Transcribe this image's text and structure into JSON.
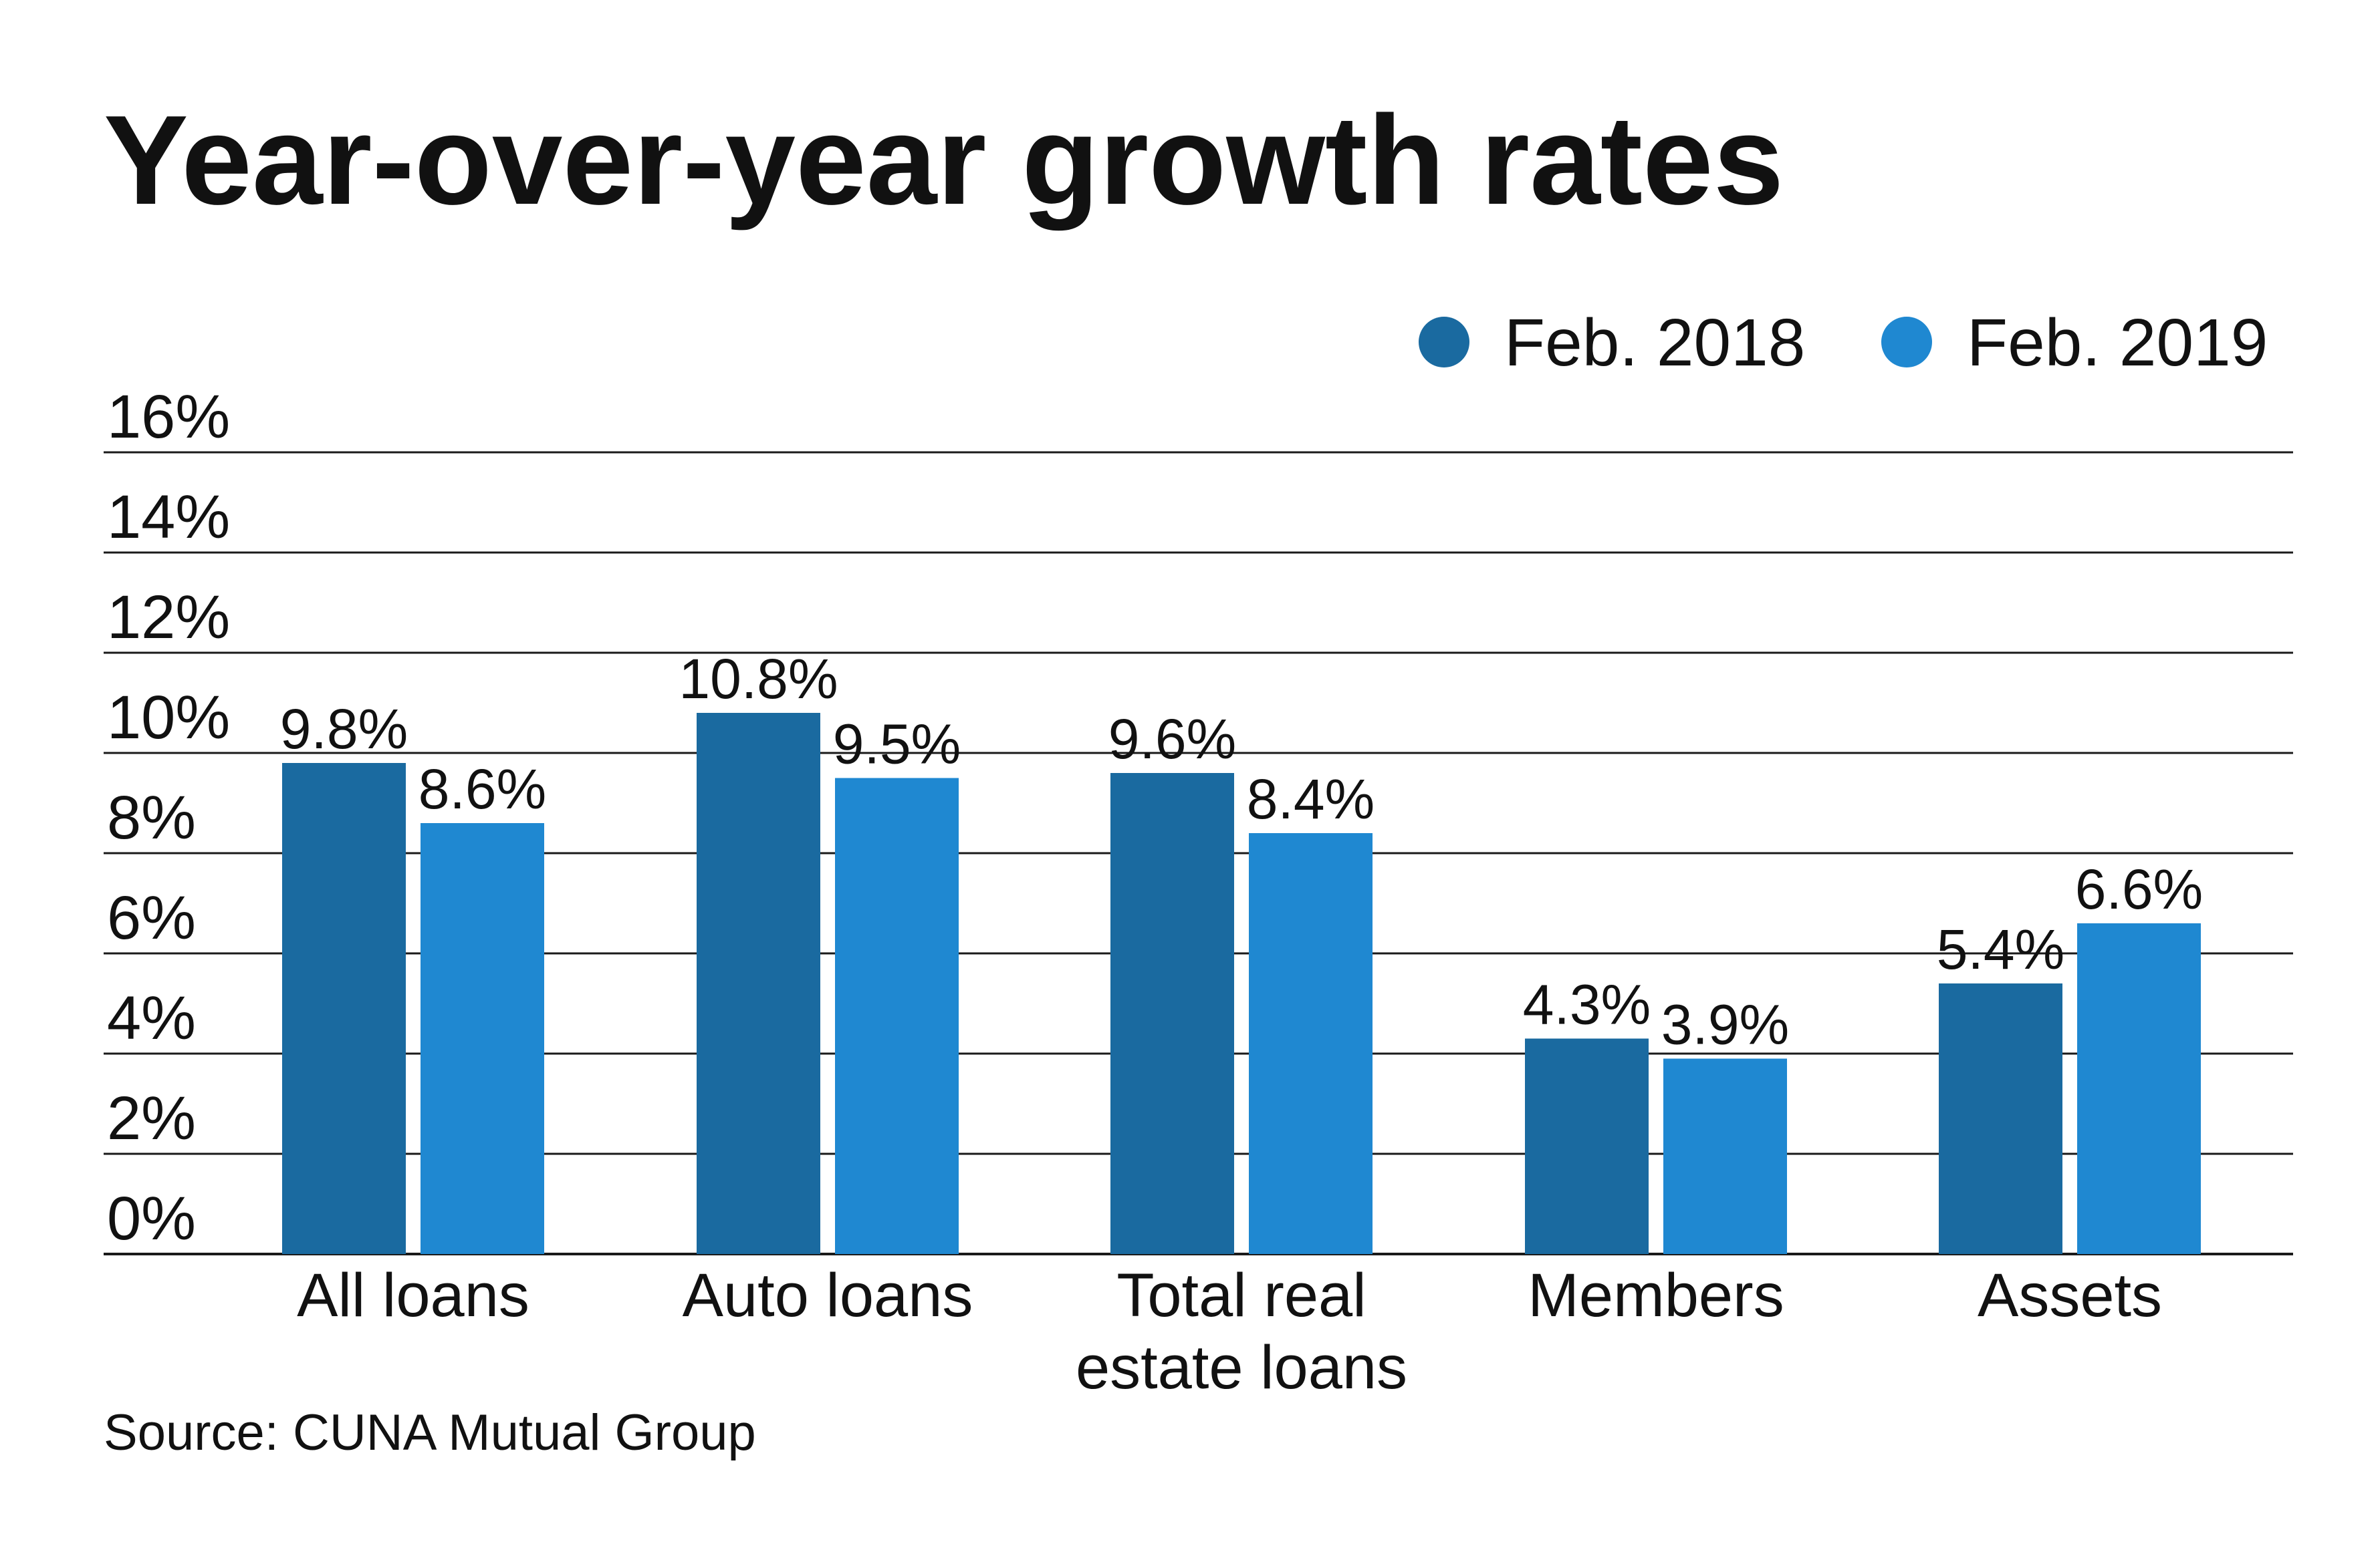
{
  "colors": {
    "series_2018": "#1a6aa0",
    "series_2019": "#1f88d1",
    "text": "#111111",
    "grid": "#1a1a1a"
  },
  "source": "Source: CUNA Mutual Group",
  "chart_data": {
    "type": "bar",
    "title": "Year-over-year growth rates",
    "categories": [
      [
        "All loans"
      ],
      [
        "Auto loans"
      ],
      [
        "Total real",
        "estate loans"
      ],
      [
        "Members"
      ],
      [
        "Assets"
      ]
    ],
    "series": [
      {
        "name": "Feb. 2018",
        "color": "#1a6aa0",
        "values": [
          9.8,
          10.8,
          9.6,
          4.3,
          5.4
        ],
        "labels": [
          "9.8%",
          "10.8%",
          "9.6%",
          "4.3%",
          "5.4%"
        ]
      },
      {
        "name": "Feb. 2019",
        "color": "#1f88d1",
        "values": [
          8.6,
          9.5,
          8.4,
          3.9,
          6.6
        ],
        "labels": [
          "8.6%",
          "9.5%",
          "8.4%",
          "3.9%",
          "6.6%"
        ]
      }
    ],
    "ylim": [
      0,
      16
    ],
    "yticks": [
      0,
      2,
      4,
      6,
      8,
      10,
      12,
      14,
      16
    ],
    "ytick_labels": [
      "0%",
      "2%",
      "4%",
      "6%",
      "8%",
      "10%",
      "12%",
      "14%",
      "16%"
    ],
    "grid": true,
    "legend_position": "top-right",
    "xlabel": "",
    "ylabel": ""
  }
}
